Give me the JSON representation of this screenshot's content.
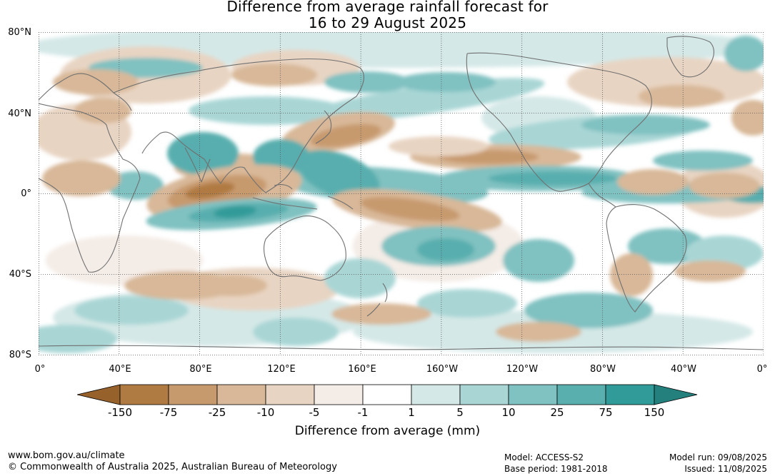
{
  "title_line1": "Difference from average rainfall forecast for",
  "title_line2": "16 to 29 August 2025",
  "lat_labels": [
    "80°N",
    "40°N",
    "0°",
    "40°S",
    "80°S"
  ],
  "lon_labels": [
    "0°",
    "40°E",
    "80°E",
    "120°E",
    "160°E",
    "160°W",
    "120°W",
    "80°W",
    "40°W",
    "0°"
  ],
  "legend": {
    "ticks": [
      "-150",
      "-75",
      "-25",
      "-10",
      "-5",
      "-1",
      "1",
      "5",
      "10",
      "25",
      "75",
      "150"
    ],
    "colors": [
      "#97612b",
      "#b07a43",
      "#c79a6e",
      "#d8b898",
      "#e8d4c2",
      "#f4ece6",
      "#ffffff",
      "#d4e8e7",
      "#a9d6d5",
      "#80c1c1",
      "#59aeae",
      "#319b99",
      "#23807d"
    ],
    "label": "Difference from average (mm)"
  },
  "footer": {
    "url": "www.bom.gov.au/climate",
    "copyright": "© Commonwealth of Australia 2025, Australian Bureau of Meteorology",
    "model": "Model: ACCESS-S2",
    "base_period": "Base period: 1981-2018",
    "model_run": "Model run: 09/08/2025",
    "issued": "Issued: 11/08/2025"
  }
}
